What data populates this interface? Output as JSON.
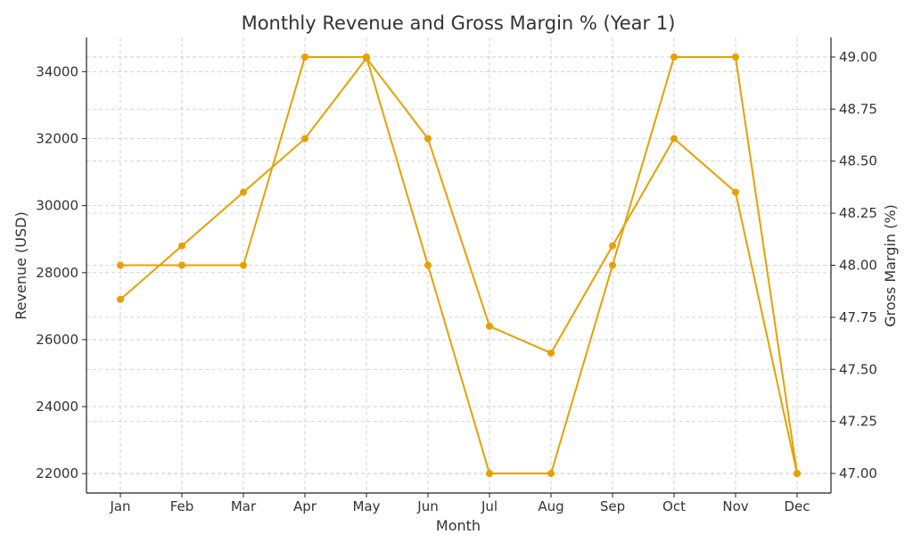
{
  "chart_data": {
    "type": "line",
    "title": "Monthly Revenue and Gross Margin % (Year 1)",
    "xlabel": "Month",
    "ylabel": "Revenue (USD)",
    "y2label": "Gross Margin (%)",
    "categories": [
      "Jan",
      "Feb",
      "Mar",
      "Apr",
      "May",
      "Jun",
      "Jul",
      "Aug",
      "Sep",
      "Oct",
      "Nov",
      "Dec"
    ],
    "series": [
      {
        "axis": "left",
        "color": "#E8A000",
        "values": [
          27200,
          28800,
          30400,
          32000,
          34400,
          32000,
          26400,
          25600,
          28800,
          32000,
          30400,
          22000
        ]
      },
      {
        "axis": "right",
        "color": "#E8A000",
        "values": [
          48.0,
          48.0,
          48.0,
          49.0,
          49.0,
          48.0,
          47.0,
          47.0,
          48.0,
          49.0,
          49.0,
          47.0
        ]
      }
    ],
    "ylim": [
      21420,
      35020
    ],
    "y2lim": [
      46.906,
      49.094
    ],
    "yticks": [
      "22000",
      "24000",
      "26000",
      "28000",
      "30000",
      "32000",
      "34000"
    ],
    "y2ticks": [
      "47.00",
      "47.25",
      "47.50",
      "47.75",
      "48.00",
      "48.25",
      "48.50",
      "48.75",
      "49.00"
    ],
    "grid": true
  }
}
